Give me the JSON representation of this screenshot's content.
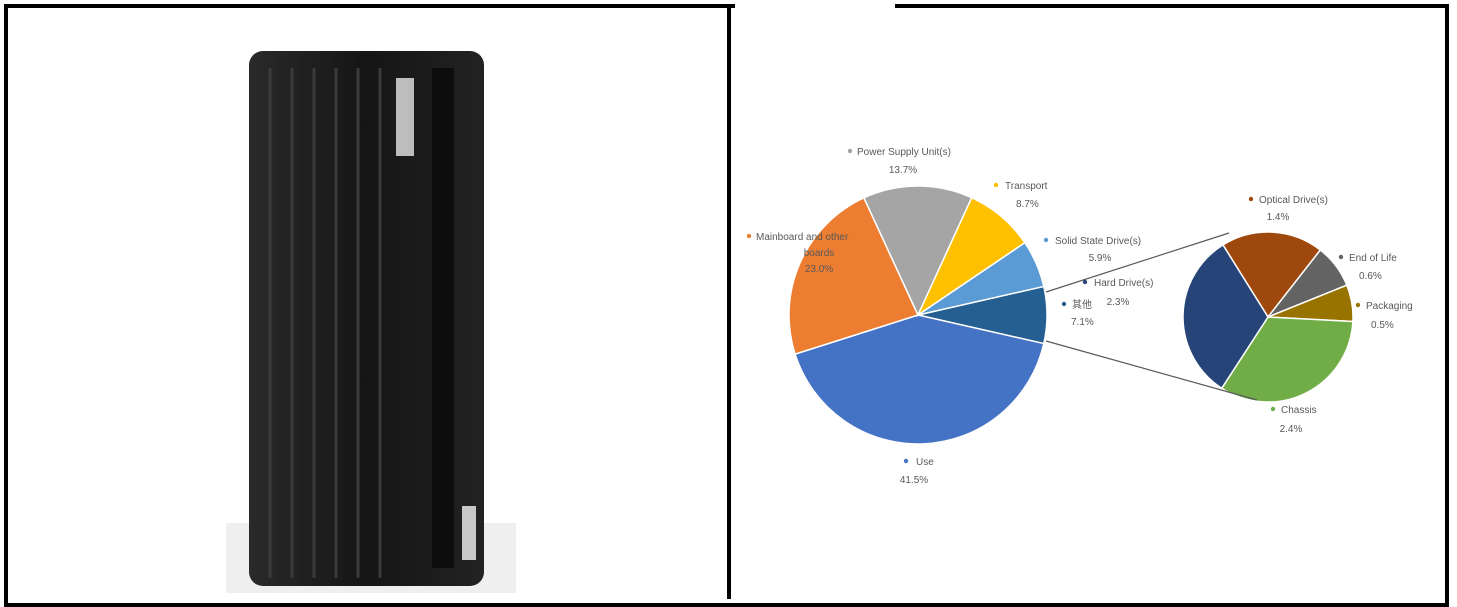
{
  "chart_data": {
    "type": "pie",
    "subtype": "pie-of-pie",
    "main_slices": [
      {
        "label": "Use",
        "value": 41.5,
        "color": "#4472c4"
      },
      {
        "label": "Mainboard and other boards",
        "value": 23.0,
        "color": "#ed7d31"
      },
      {
        "label": "Power Supply Unit(s)",
        "value": 13.7,
        "color": "#a5a5a5"
      },
      {
        "label": "Transport",
        "value": 8.7,
        "color": "#ffc000"
      },
      {
        "label": "Solid State Drive(s)",
        "value": 5.9,
        "color": "#5b9bd5"
      },
      {
        "label": "其他",
        "value": 7.1,
        "color": "#255e91"
      }
    ],
    "secondary_slices": [
      {
        "label": "Optical Drive(s)",
        "value": 1.4,
        "color": "#9e480e"
      },
      {
        "label": "End of Life",
        "value": 0.6,
        "color": "#636363"
      },
      {
        "label": "Packaging",
        "value": 0.5,
        "color": "#997300"
      },
      {
        "label": "Chassis",
        "value": 2.4,
        "color": "#70ad47"
      },
      {
        "label": "Hard Drive(s)",
        "value": 2.3,
        "color": "#264478"
      }
    ],
    "labels": {
      "psu": {
        "name": "Power Supply Unit(s)",
        "pct": "13.7%"
      },
      "transport": {
        "name": "Transport",
        "pct": "8.7%"
      },
      "mainboard": {
        "name1": "Mainboard and other",
        "name2": "boards",
        "pct": "23.0%"
      },
      "ssd": {
        "name": "Solid State Drive(s)",
        "pct": "5.9%"
      },
      "hdd": {
        "name": "Hard Drive(s)",
        "pct": "2.3%"
      },
      "other": {
        "name": "其他",
        "pct": "7.1%"
      },
      "use": {
        "name": "Use",
        "pct": "41.5%"
      },
      "optical": {
        "name": "Optical Drive(s)",
        "pct": "1.4%"
      },
      "eol": {
        "name": "End of Life",
        "pct": "0.6%"
      },
      "packaging": {
        "name": "Packaging",
        "pct": "0.5%"
      },
      "chassis": {
        "name": "Chassis",
        "pct": "2.4%"
      }
    },
    "legend": "none",
    "grid": false
  },
  "colors": {
    "border": "#000000",
    "tower_body": "#1b1b1b"
  }
}
